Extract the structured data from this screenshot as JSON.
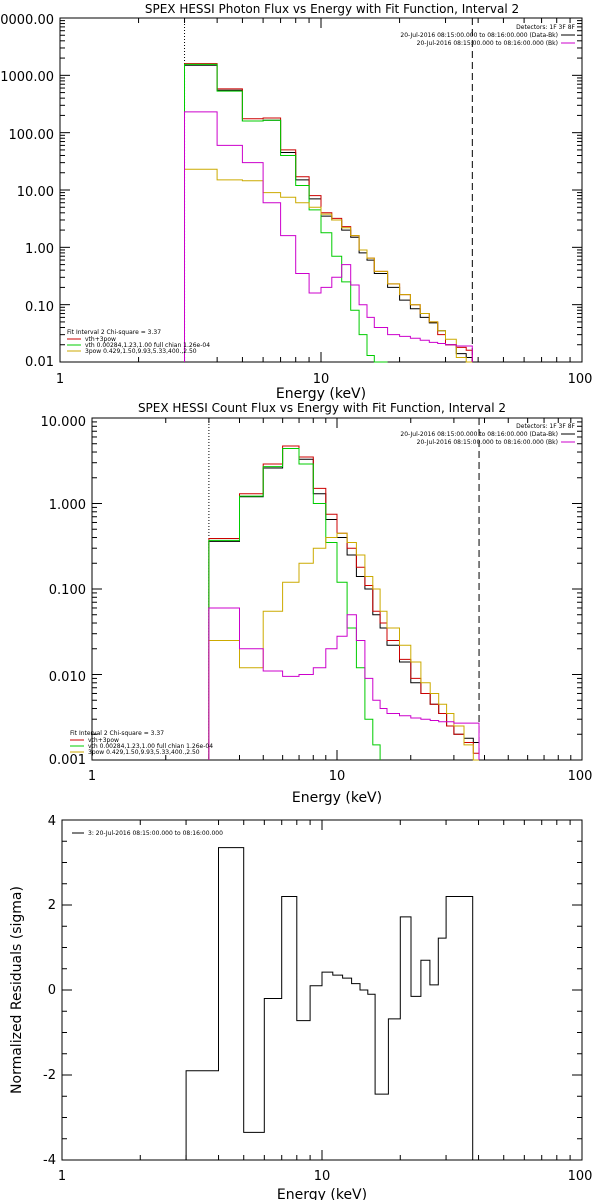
{
  "chart_data": [
    {
      "type": "line",
      "title": "SPEX HESSI Photon Flux vs Energy with Fit Function, Interval 2",
      "xlabel": "Energy (keV)",
      "ylabel": "",
      "xscale": "log",
      "yscale": "log",
      "xlim": [
        1,
        100
      ],
      "ylim": [
        0.01,
        10000
      ],
      "x_ticks": [
        "1",
        "10",
        "100"
      ],
      "y_ticks": [
        "0.01",
        "0.10",
        "1.00",
        "10.00",
        "100.00",
        "1000.00",
        "10000.00"
      ],
      "vlines": [
        {
          "x": 3,
          "style": "dotted"
        },
        {
          "x": 38,
          "style": "dashed"
        }
      ],
      "legend_right": {
        "placement": "top-right",
        "header": "Detectors: 1F 3F 8F",
        "entries": [
          {
            "label": "20-Jul-2016 08:15:00.000 to 08:16:00.000 (Data-Bk)",
            "color": "#000000"
          },
          {
            "label": "20-Jul-2016 08:15:00.000 to 08:16:00.000 (Bk)",
            "color": "#cc00cc"
          }
        ]
      },
      "legend_left": {
        "placement": "bottom-left",
        "header": "Fit Interval 2   Chi-square = 3.37",
        "entries": [
          {
            "label": "vth+3pow",
            "color": "#cc0000"
          },
          {
            "label": "vth 0.00284,1.23,1.00  full chian 1.26e-04",
            "color": "#00cc00"
          },
          {
            "label": "3pow 0.429,1.50,9.93,5.33,400.,2.50",
            "color": "#ccaa00"
          }
        ]
      },
      "edges": [
        3,
        4,
        5,
        6,
        7,
        8,
        9,
        10,
        11,
        12,
        13,
        14,
        15,
        16,
        18,
        20,
        22,
        24,
        26,
        28,
        30,
        33,
        36,
        38
      ],
      "series": [
        {
          "name": "Data-Bk",
          "color": "#000000",
          "values": [
            1500,
            550,
            160,
            165,
            45,
            15,
            7,
            3.5,
            3.0,
            2.0,
            1.5,
            0.8,
            0.6,
            0.35,
            0.2,
            0.12,
            0.085,
            0.06,
            0.048,
            0.035,
            0.02,
            0.014,
            0.012
          ]
        },
        {
          "name": "vth+3pow",
          "color": "#cc0000",
          "values": [
            1600,
            580,
            175,
            180,
            50,
            17,
            8,
            4.0,
            3.2,
            2.3,
            1.6,
            0.9,
            0.65,
            0.38,
            0.23,
            0.15,
            0.1,
            0.07,
            0.05,
            0.03,
            0.02,
            0.018,
            0.016
          ]
        },
        {
          "name": "vth",
          "color": "#00cc00",
          "values": [
            1550,
            530,
            160,
            165,
            40,
            12,
            4.5,
            1.8,
            0.7,
            0.25,
            0.08,
            0.03,
            0.013,
            0.007,
            null,
            null,
            null,
            null,
            null,
            null,
            null,
            null,
            null
          ]
        },
        {
          "name": "3pow",
          "color": "#ccaa00",
          "values": [
            23,
            15,
            14.5,
            9,
            7.5,
            6,
            5,
            3.8,
            3.0,
            2.2,
            1.6,
            0.9,
            0.65,
            0.38,
            0.23,
            0.15,
            0.1,
            0.07,
            0.05,
            0.035,
            0.025,
            0.012,
            0.008
          ]
        },
        {
          "name": "Bk",
          "color": "#cc00cc",
          "values": [
            230,
            60,
            30,
            6,
            1.6,
            0.35,
            0.16,
            0.2,
            0.3,
            0.5,
            0.22,
            0.1,
            0.06,
            0.04,
            0.03,
            0.028,
            0.026,
            0.024,
            0.022,
            0.021,
            0.02,
            0.019,
            0.019
          ]
        }
      ]
    },
    {
      "type": "line",
      "title": "SPEX HESSI Count Flux vs Energy with Fit Function, Interval 2",
      "xlabel": "Energy (keV)",
      "ylabel": "",
      "xscale": "log",
      "yscale": "log",
      "xlim": [
        1,
        100
      ],
      "ylim": [
        0.001,
        10
      ],
      "x_ticks": [
        "1",
        "10",
        "100"
      ],
      "y_ticks": [
        "0.001",
        "0.010",
        "0.100",
        "1.000",
        "10.000"
      ],
      "vlines": [
        {
          "x": 3,
          "style": "dotted"
        },
        {
          "x": 38,
          "style": "dashed"
        }
      ],
      "legend_right": {
        "placement": "top-right",
        "header": "Detectors: 1F 3F 8F",
        "entries": [
          {
            "label": "20-Jul-2016 08:15:00.000 to 08:16:00.000 (Data-Bk)",
            "color": "#000000"
          },
          {
            "label": "20-Jul-2016 08:15:00.000 to 08:16:00.000 (Bk)",
            "color": "#cc00cc"
          }
        ]
      },
      "legend_left": {
        "placement": "bottom-left",
        "header": "Fit Interval 2   Chi-square = 3.37",
        "entries": [
          {
            "label": "vth+3pow",
            "color": "#cc0000"
          },
          {
            "label": "vth 0.00284,1.23,1.00  full chian 1.26e-04",
            "color": "#00cc00"
          },
          {
            "label": "3pow 0.429,1.50,9.93,5.33,400.,2.50",
            "color": "#ccaa00"
          }
        ]
      },
      "edges": [
        3,
        4,
        5,
        6,
        7,
        8,
        9,
        10,
        11,
        12,
        13,
        14,
        15,
        16,
        18,
        20,
        22,
        24,
        26,
        28,
        30,
        33,
        36,
        38
      ],
      "series": [
        {
          "name": "Data-Bk",
          "color": "#000000",
          "values": [
            0.36,
            1.2,
            2.6,
            4.4,
            3.3,
            1.3,
            0.65,
            0.4,
            0.25,
            0.14,
            0.1,
            0.05,
            0.035,
            0.022,
            0.014,
            0.008,
            0.006,
            0.0045,
            0.0035,
            0.0025,
            0.002,
            0.0018,
            0.0016
          ]
        },
        {
          "name": "vth+3pow",
          "color": "#cc0000",
          "values": [
            0.39,
            1.3,
            2.9,
            4.7,
            3.5,
            1.5,
            0.75,
            0.45,
            0.3,
            0.18,
            0.11,
            0.055,
            0.04,
            0.025,
            0.015,
            0.009,
            0.006,
            0.0045,
            0.0035,
            0.0025,
            0.002,
            0.0016,
            0.0012
          ]
        },
        {
          "name": "vth",
          "color": "#00cc00",
          "values": [
            0.37,
            1.22,
            2.7,
            4.4,
            2.9,
            1.0,
            0.35,
            0.12,
            0.035,
            0.012,
            0.003,
            0.0015,
            null,
            null,
            null,
            null,
            null,
            null,
            null,
            null,
            null,
            null,
            null
          ]
        },
        {
          "name": "3pow",
          "color": "#ccaa00",
          "values": [
            0.025,
            0.012,
            0.055,
            0.12,
            0.2,
            0.3,
            0.4,
            0.45,
            0.35,
            0.25,
            0.14,
            0.1,
            0.055,
            0.035,
            0.022,
            0.014,
            0.008,
            0.006,
            0.0045,
            0.0035,
            0.0025,
            0.0015,
            0.0008
          ]
        },
        {
          "name": "Bk",
          "color": "#cc00cc",
          "values": [
            0.06,
            0.02,
            0.011,
            0.0095,
            0.01,
            0.012,
            0.02,
            0.028,
            0.05,
            0.025,
            0.009,
            0.005,
            0.004,
            0.0035,
            0.0033,
            0.0031,
            0.003,
            0.0029,
            0.0028,
            0.0028,
            0.0027,
            0.0027,
            0.0027
          ]
        }
      ]
    },
    {
      "type": "line",
      "title": "",
      "xlabel": "Energy (keV)",
      "ylabel": "Normalized Residuals (sigma)",
      "xscale": "log",
      "xlim": [
        1,
        100
      ],
      "ylim": [
        -4,
        4
      ],
      "x_ticks": [
        "1",
        "10",
        "100"
      ],
      "y_ticks": [
        "-4",
        "-2",
        "0",
        "2",
        "4"
      ],
      "legend": {
        "placement": "top-left",
        "entries": [
          {
            "label": "3: 20-Jul-2016 08:15:00.000 to 08:16:00.000",
            "color": "#000000"
          }
        ]
      },
      "edges": [
        3,
        4,
        5,
        6,
        7,
        8,
        9,
        10,
        11,
        12,
        13,
        14,
        15,
        16,
        18,
        20,
        22,
        24,
        26,
        28,
        30,
        33,
        36,
        38
      ],
      "series": [
        {
          "name": "3: 20-Jul-2016 08:15:00.000 to 08:16:00.000",
          "color": "#000000",
          "values": [
            -1.9,
            3.35,
            -3.35,
            -0.2,
            2.2,
            -0.72,
            0.1,
            0.42,
            0.35,
            0.28,
            0.15,
            0.0,
            -0.1,
            -2.45,
            -0.68,
            1.72,
            -0.15,
            0.7,
            0.12,
            1.22,
            2.2,
            2.2,
            2.2
          ]
        }
      ]
    }
  ]
}
